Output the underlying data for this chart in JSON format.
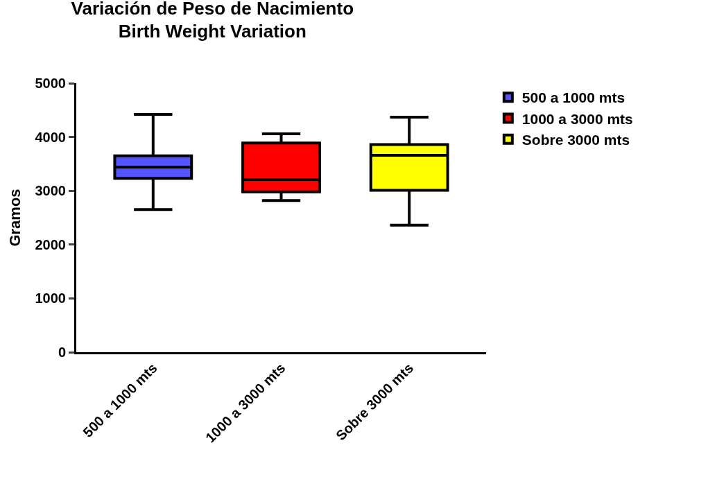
{
  "chart_data": {
    "type": "box",
    "title": "Variación de Peso de Nacimiento\nBirth Weight Variation",
    "ylabel": "Gramos",
    "categories": [
      "500 a 1000 mts",
      "1000 a 3000 mts",
      "Sobre 3000 mts"
    ],
    "series": [
      {
        "name": "500 a 1000 mts",
        "color": "#5555ff",
        "boxes": [
          {
            "low": 2650,
            "q1": 3230,
            "median": 3440,
            "q3": 3650,
            "high": 4420
          },
          null,
          null
        ]
      },
      {
        "name": "1000 a 3000 mts",
        "color": "#ff0000",
        "boxes": [
          null,
          {
            "low": 2820,
            "q1": 2980,
            "median": 3210,
            "q3": 3890,
            "high": 4060
          },
          null
        ]
      },
      {
        "name": "Sobre 3000 mts",
        "color": "#ffff00",
        "boxes": [
          null,
          null,
          {
            "low": 2360,
            "q1": 3010,
            "median": 3660,
            "q3": 3860,
            "high": 4370
          }
        ]
      }
    ],
    "ylim": [
      0,
      5000
    ],
    "yticks": [
      0,
      1000,
      2000,
      3000,
      4000,
      5000
    ],
    "legend": "top right"
  }
}
